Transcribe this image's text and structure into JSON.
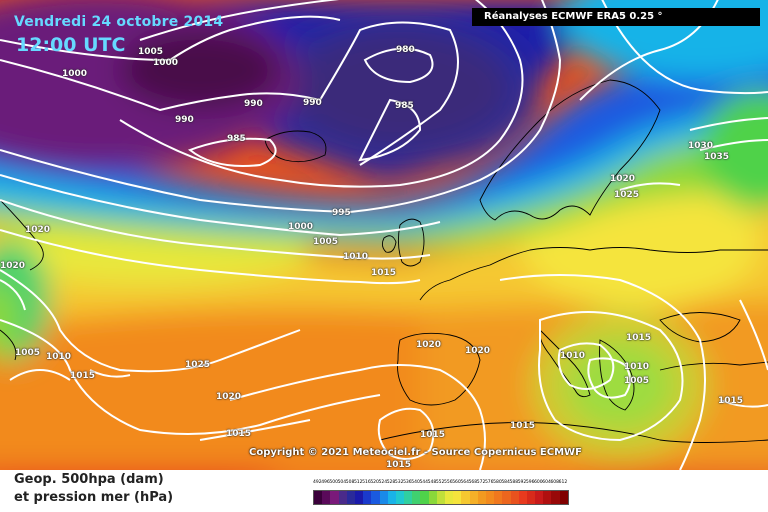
{
  "header": {
    "date": "Vendredi 24 octobre 2014",
    "time": "12:00 UTC",
    "source": "Réanalyses ECMWF ERA5 0.25 °"
  },
  "footer": {
    "copyright": "Copyright © 2021 Meteociel.fr - Source Copernicus ECMWF",
    "legend_line1": "Geop. 500hpa (dam)",
    "legend_line2": "et pression mer (hPa)"
  },
  "colors": {
    "deep_low": "#2a0a3a",
    "purple": "#6a1a7a",
    "navy": "#1a1a6a",
    "blue": "#1230d8",
    "cyan": "#19b3e8",
    "green": "#4fd24a",
    "yellow": "#f5e43c",
    "orange": "#f28a1e",
    "red": "#e83a1e"
  },
  "isobar_labels": [
    "1005",
    "1000",
    "1000",
    "990",
    "990",
    "990",
    "985",
    "980",
    "985",
    "995",
    "1000",
    "1005",
    "1010",
    "1015",
    "1020",
    "1020",
    "1005",
    "1010",
    "1015",
    "1025",
    "1020",
    "1015",
    "1020",
    "1020",
    "1015",
    "1010",
    "1015",
    "1010",
    "1005",
    "1015",
    "1015",
    "1030",
    "1035",
    "1020",
    "1025",
    "1015"
  ],
  "scale": {
    "labels": [
      "492",
      "496",
      "500",
      "504",
      "508",
      "512",
      "516",
      "520",
      "524",
      "528",
      "532",
      "536",
      "540",
      "544",
      "548",
      "552",
      "556",
      "560",
      "564",
      "568",
      "572",
      "576",
      "580",
      "584",
      "588",
      "592",
      "596",
      "600",
      "604",
      "608",
      "612"
    ],
    "colors": [
      "#3a003a",
      "#5a0a5a",
      "#7a1a7a",
      "#4a2a8a",
      "#2a2a9a",
      "#1a1aaa",
      "#1a3acc",
      "#1a5ae0",
      "#1a8ae8",
      "#19b3e8",
      "#20c8d0",
      "#30d0a0",
      "#40d070",
      "#4fd24a",
      "#8ad83a",
      "#c0e03a",
      "#e8e83c",
      "#f5e43c",
      "#f5c830",
      "#f5b028",
      "#f29a20",
      "#f28a1e",
      "#f0781e",
      "#ec661e",
      "#e8521e",
      "#e83a1e",
      "#d82a1a",
      "#c81a1a",
      "#b01010",
      "#980808",
      "#800000"
    ]
  }
}
